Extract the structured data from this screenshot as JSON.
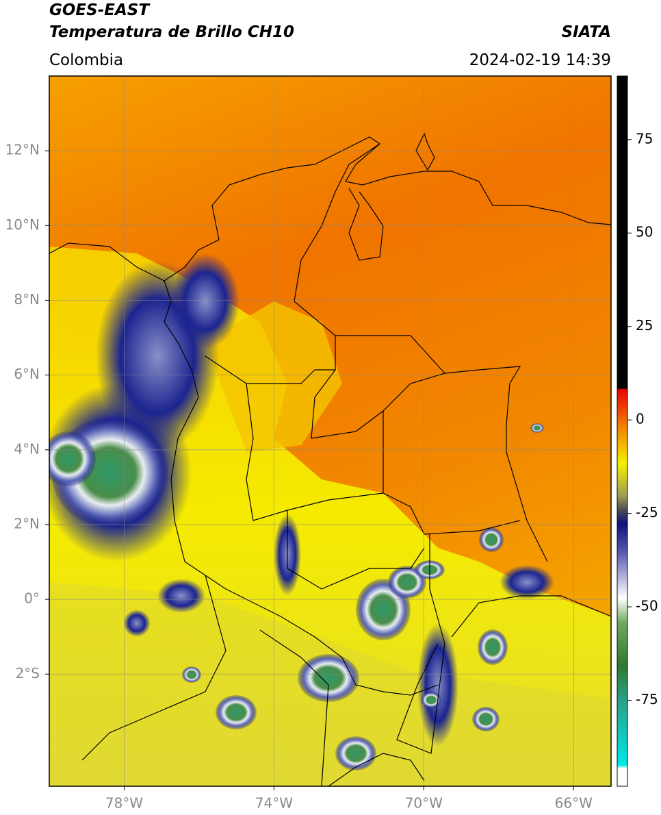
{
  "header": {
    "title": "GOES-EAST",
    "subtitle": "Temperatura de Brillo CH10",
    "region": "Colombia",
    "source": "SIATA",
    "datetime": "2024-02-19 14:39"
  },
  "map": {
    "xlim": [
      -80,
      -65
    ],
    "ylim": [
      -5,
      14
    ],
    "grid": true,
    "xticks": [
      {
        "value": -78,
        "label": "78°W"
      },
      {
        "value": -74,
        "label": "74°W"
      },
      {
        "value": -70,
        "label": "70°W"
      },
      {
        "value": -66,
        "label": "66°W"
      }
    ],
    "yticks": [
      {
        "value": 12,
        "label": "12°N"
      },
      {
        "value": 10,
        "label": "10°N"
      },
      {
        "value": 8,
        "label": "8°N"
      },
      {
        "value": 6,
        "label": "6°N"
      },
      {
        "value": 4,
        "label": "4°N"
      },
      {
        "value": 2,
        "label": "2°N"
      },
      {
        "value": 0,
        "label": "0°"
      },
      {
        "value": -2,
        "label": "2°S"
      }
    ]
  },
  "colorbar": {
    "lim": [
      -98,
      92
    ],
    "ticks": [
      75,
      50,
      25,
      0,
      -25,
      -50,
      -75
    ]
  }
}
